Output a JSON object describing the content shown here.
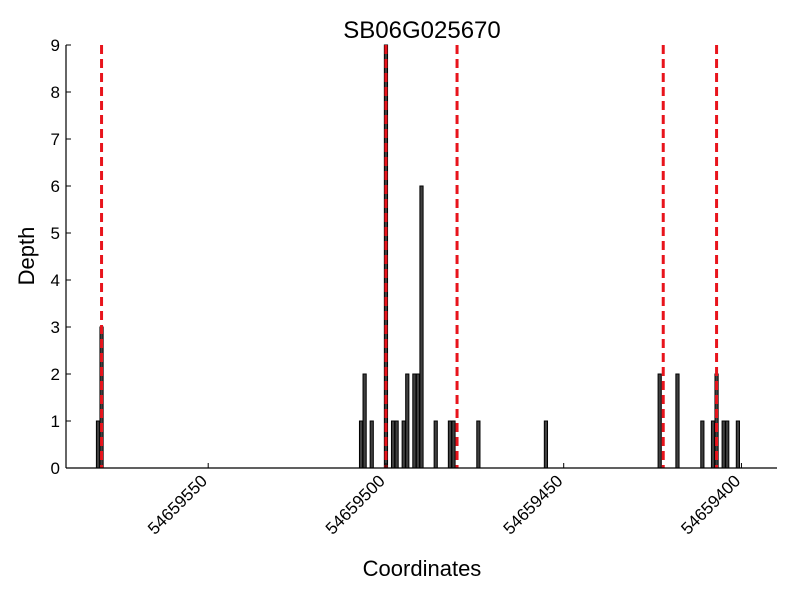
{
  "chart_data": {
    "type": "bar",
    "title": "SB06G025670",
    "xlabel": "Coordinates",
    "ylabel": "Depth",
    "x_reversed": true,
    "xlim": [
      54659590,
      54659390
    ],
    "ylim": [
      0,
      9
    ],
    "y_ticks": [
      "0",
      "1",
      "2",
      "3",
      "4",
      "5",
      "6",
      "7",
      "8",
      "9"
    ],
    "x_ticks": [
      {
        "value": 54659550,
        "label": "54659550"
      },
      {
        "value": 54659500,
        "label": "54659500"
      },
      {
        "value": 54659450,
        "label": "54659450"
      },
      {
        "value": 54659400,
        "label": "54659400"
      }
    ],
    "grid": false,
    "bar_color": "#404040",
    "marker_color": "#e8141c",
    "bars": [
      {
        "x": 54659581,
        "y": 1
      },
      {
        "x": 54659580,
        "y": 3
      },
      {
        "x": 54659507,
        "y": 1
      },
      {
        "x": 54659506,
        "y": 2
      },
      {
        "x": 54659504,
        "y": 1
      },
      {
        "x": 54659500,
        "y": 9
      },
      {
        "x": 54659498,
        "y": 1
      },
      {
        "x": 54659497,
        "y": 1
      },
      {
        "x": 54659495,
        "y": 1
      },
      {
        "x": 54659494,
        "y": 2
      },
      {
        "x": 54659492,
        "y": 2
      },
      {
        "x": 54659491,
        "y": 2
      },
      {
        "x": 54659490,
        "y": 6
      },
      {
        "x": 54659486,
        "y": 1
      },
      {
        "x": 54659482,
        "y": 1
      },
      {
        "x": 54659481,
        "y": 1
      },
      {
        "x": 54659474,
        "y": 1
      },
      {
        "x": 54659455,
        "y": 1
      },
      {
        "x": 54659423,
        "y": 2
      },
      {
        "x": 54659418,
        "y": 2
      },
      {
        "x": 54659411,
        "y": 1
      },
      {
        "x": 54659408,
        "y": 1
      },
      {
        "x": 54659407,
        "y": 2
      },
      {
        "x": 54659405,
        "y": 1
      },
      {
        "x": 54659404,
        "y": 1
      },
      {
        "x": 54659401,
        "y": 1
      }
    ],
    "vlines": [
      54659580,
      54659500,
      54659480,
      54659422,
      54659407
    ]
  }
}
